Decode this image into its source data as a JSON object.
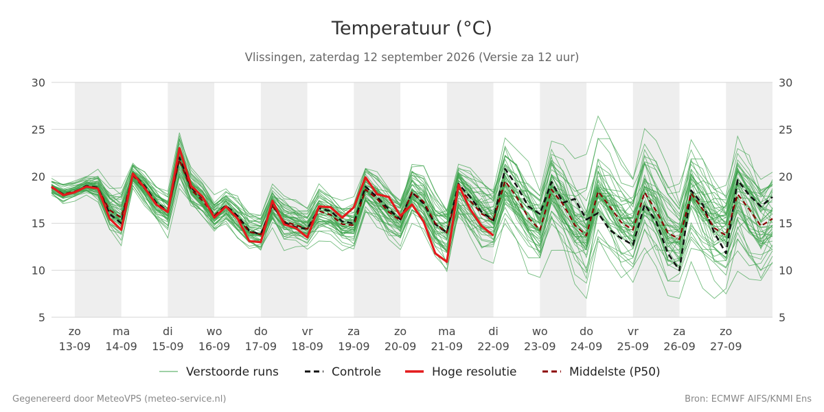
{
  "chart_data": {
    "type": "line",
    "title": "Temperatuur (°C)",
    "subtitle": "Vlissingen, zaterdag 12 september 2026 (Versie za 12 uur)",
    "ylim": [
      5,
      30
    ],
    "y_ticks": [
      5,
      10,
      15,
      20,
      25,
      30
    ],
    "grid": true,
    "x_start": "2026-09-12T12:00",
    "x_end": "2026-09-28T00:00",
    "day_labels": [
      {
        "date": "2026-09-13",
        "weekday": "zo",
        "label": "13-09",
        "shaded": true
      },
      {
        "date": "2026-09-14",
        "weekday": "ma",
        "label": "14-09",
        "shaded": false
      },
      {
        "date": "2026-09-15",
        "weekday": "di",
        "label": "15-09",
        "shaded": true
      },
      {
        "date": "2026-09-16",
        "weekday": "wo",
        "label": "16-09",
        "shaded": false
      },
      {
        "date": "2026-09-17",
        "weekday": "do",
        "label": "17-09",
        "shaded": true
      },
      {
        "date": "2026-09-18",
        "weekday": "vr",
        "label": "18-09",
        "shaded": false
      },
      {
        "date": "2026-09-19",
        "weekday": "za",
        "label": "19-09",
        "shaded": true
      },
      {
        "date": "2026-09-20",
        "weekday": "zo",
        "label": "20-09",
        "shaded": false
      },
      {
        "date": "2026-09-21",
        "weekday": "ma",
        "label": "21-09",
        "shaded": true
      },
      {
        "date": "2026-09-22",
        "weekday": "di",
        "label": "22-09",
        "shaded": false
      },
      {
        "date": "2026-09-23",
        "weekday": "wo",
        "label": "23-09",
        "shaded": true
      },
      {
        "date": "2026-09-24",
        "weekday": "do",
        "label": "24-09",
        "shaded": false
      },
      {
        "date": "2026-09-25",
        "weekday": "vr",
        "label": "25-09",
        "shaded": true
      },
      {
        "date": "2026-09-26",
        "weekday": "za",
        "label": "26-09",
        "shaded": false
      },
      {
        "date": "2026-09-27",
        "weekday": "zo",
        "label": "27-09",
        "shaded": true
      }
    ],
    "legend_position": "bottom",
    "legend": [
      {
        "name": "Verstoorde runs",
        "style": "thin-solid",
        "color": "#3fa34d"
      },
      {
        "name": "Controle",
        "style": "dashed",
        "color": "#111111"
      },
      {
        "name": "Hoge resolutie",
        "style": "thick-solid",
        "color": "#e31a1c"
      },
      {
        "name": "Middelste (P50)",
        "style": "dashed",
        "color": "#8b0000"
      }
    ],
    "ensemble": {
      "name": "Verstoorde runs",
      "member_count": 50,
      "color": "#3fa34d",
      "spread": [
        [
          0.6,
          0.7,
          0.6,
          0.6,
          1.0,
          1.6,
          2.2,
          1.0,
          1.2,
          1.3,
          1.5,
          1.8,
          1.5,
          1.4,
          1.2,
          1.3,
          1.5,
          1.5,
          1.6,
          1.5,
          1.8,
          1.6,
          1.5,
          1.8,
          1.5,
          1.6,
          1.7,
          1.6,
          1.8,
          1.9,
          1.7,
          2.0,
          2.2,
          2.3,
          2.6,
          2.5,
          2.8,
          3.0,
          2.8,
          2.9,
          3.0,
          3.2,
          3.0,
          3.3,
          3.2,
          3.3,
          3.4,
          3.3,
          3.5,
          3.6,
          3.5,
          3.6,
          3.6,
          3.8,
          3.8,
          3.9,
          3.8,
          4.0,
          4.0,
          4.0,
          4.0,
          4.0,
          4.0
        ],
        [
          0,
          6,
          12,
          18,
          24,
          30,
          36,
          42,
          48,
          54,
          60,
          66,
          72,
          78,
          84,
          90,
          96,
          102,
          108,
          114,
          120,
          126,
          132,
          138,
          144,
          150,
          156,
          162,
          168,
          174,
          180,
          186,
          192,
          198,
          204,
          210,
          216,
          222,
          228,
          234,
          240,
          246,
          252,
          258,
          264,
          270,
          276,
          282,
          288,
          294,
          300,
          306,
          312,
          318,
          324,
          330,
          336,
          342,
          348,
          354,
          360,
          366,
          372
        ]
      ]
    },
    "series": [
      {
        "name": "Controle",
        "color": "#111111",
        "x": [
          "2026-09-12T12:00",
          "2026-09-12T18:00",
          "2026-09-13T00:00",
          "2026-09-13T06:00",
          "2026-09-13T12:00",
          "2026-09-13T18:00",
          "2026-09-14T00:00",
          "2026-09-14T06:00",
          "2026-09-14T12:00",
          "2026-09-14T18:00",
          "2026-09-15T00:00",
          "2026-09-15T06:00",
          "2026-09-15T12:00",
          "2026-09-15T18:00",
          "2026-09-16T00:00",
          "2026-09-16T06:00",
          "2026-09-16T12:00",
          "2026-09-16T18:00",
          "2026-09-17T00:00",
          "2026-09-17T06:00",
          "2026-09-17T12:00",
          "2026-09-17T18:00",
          "2026-09-18T00:00",
          "2026-09-18T06:00",
          "2026-09-18T12:00",
          "2026-09-18T18:00",
          "2026-09-19T00:00",
          "2026-09-19T06:00",
          "2026-09-19T12:00",
          "2026-09-19T18:00",
          "2026-09-20T00:00",
          "2026-09-20T06:00",
          "2026-09-20T12:00",
          "2026-09-20T18:00",
          "2026-09-21T00:00",
          "2026-09-21T06:00",
          "2026-09-21T12:00",
          "2026-09-21T18:00",
          "2026-09-22T00:00",
          "2026-09-22T06:00",
          "2026-09-22T12:00",
          "2026-09-22T18:00",
          "2026-09-23T00:00",
          "2026-09-23T06:00",
          "2026-09-23T12:00",
          "2026-09-23T18:00",
          "2026-09-24T00:00",
          "2026-09-24T06:00",
          "2026-09-24T12:00",
          "2026-09-24T18:00",
          "2026-09-25T00:00",
          "2026-09-25T06:00",
          "2026-09-25T12:00",
          "2026-09-25T18:00",
          "2026-09-26T00:00",
          "2026-09-26T06:00",
          "2026-09-26T12:00",
          "2026-09-26T18:00",
          "2026-09-27T00:00",
          "2026-09-27T06:00",
          "2026-09-27T12:00",
          "2026-09-27T18:00",
          "2026-09-28T00:00"
        ],
        "values": [
          18.9,
          18.1,
          18.3,
          19.0,
          18.8,
          16.0,
          15.0,
          20.3,
          19.0,
          17.2,
          16.3,
          22.0,
          18.8,
          17.7,
          15.8,
          16.9,
          15.8,
          14.2,
          13.8,
          17.0,
          15.1,
          14.6,
          14.4,
          16.6,
          16.3,
          15.2,
          15.0,
          18.9,
          17.8,
          16.5,
          15.4,
          18.3,
          17.1,
          14.9,
          14.0,
          19.2,
          17.8,
          16.2,
          15.3,
          20.8,
          19.0,
          16.8,
          16.0,
          19.4,
          17.2,
          17.6,
          15.4,
          16.1,
          14.3,
          13.4,
          12.7,
          17.0,
          15.2,
          11.8,
          10.0,
          18.5,
          17.0,
          14.0,
          11.8,
          19.6,
          18.0,
          16.8,
          17.8
        ]
      },
      {
        "name": "Hoge resolutie",
        "color": "#e31a1c",
        "x": [
          "2026-09-12T12:00",
          "2026-09-12T18:00",
          "2026-09-13T00:00",
          "2026-09-13T06:00",
          "2026-09-13T12:00",
          "2026-09-13T18:00",
          "2026-09-14T00:00",
          "2026-09-14T06:00",
          "2026-09-14T12:00",
          "2026-09-14T18:00",
          "2026-09-15T00:00",
          "2026-09-15T06:00",
          "2026-09-15T12:00",
          "2026-09-15T18:00",
          "2026-09-16T00:00",
          "2026-09-16T06:00",
          "2026-09-16T12:00",
          "2026-09-16T18:00",
          "2026-09-17T00:00",
          "2026-09-17T06:00",
          "2026-09-17T12:00",
          "2026-09-17T18:00",
          "2026-09-18T00:00",
          "2026-09-18T06:00",
          "2026-09-18T12:00",
          "2026-09-18T18:00",
          "2026-09-19T00:00",
          "2026-09-19T06:00",
          "2026-09-19T12:00",
          "2026-09-19T18:00",
          "2026-09-20T00:00",
          "2026-09-20T06:00",
          "2026-09-20T12:00",
          "2026-09-20T18:00",
          "2026-09-21T00:00",
          "2026-09-21T06:00",
          "2026-09-21T12:00",
          "2026-09-21T18:00",
          "2026-09-22T00:00"
        ],
        "values": [
          18.9,
          18.0,
          18.3,
          18.9,
          18.7,
          15.5,
          14.3,
          20.3,
          18.8,
          17.0,
          16.2,
          23.0,
          19.0,
          17.8,
          15.6,
          16.8,
          15.5,
          13.1,
          13.0,
          17.4,
          14.9,
          14.5,
          13.5,
          16.8,
          16.7,
          15.6,
          16.7,
          19.9,
          18.1,
          17.8,
          15.8,
          17.0,
          15.2,
          11.8,
          10.9,
          19.1,
          16.5,
          14.7,
          13.7
        ]
      },
      {
        "name": "Middelste (P50)",
        "color": "#8b0000",
        "x": [
          "2026-09-12T12:00",
          "2026-09-12T18:00",
          "2026-09-13T00:00",
          "2026-09-13T06:00",
          "2026-09-13T12:00",
          "2026-09-13T18:00",
          "2026-09-14T00:00",
          "2026-09-14T06:00",
          "2026-09-14T12:00",
          "2026-09-14T18:00",
          "2026-09-15T00:00",
          "2026-09-15T06:00",
          "2026-09-15T12:00",
          "2026-09-15T18:00",
          "2026-09-16T00:00",
          "2026-09-16T06:00",
          "2026-09-16T12:00",
          "2026-09-16T18:00",
          "2026-09-17T00:00",
          "2026-09-17T06:00",
          "2026-09-17T12:00",
          "2026-09-17T18:00",
          "2026-09-18T00:00",
          "2026-09-18T06:00",
          "2026-09-18T12:00",
          "2026-09-18T18:00",
          "2026-09-19T00:00",
          "2026-09-19T06:00",
          "2026-09-19T12:00",
          "2026-09-19T18:00",
          "2026-09-20T00:00",
          "2026-09-20T06:00",
          "2026-09-20T12:00",
          "2026-09-20T18:00",
          "2026-09-21T00:00",
          "2026-09-21T06:00",
          "2026-09-21T12:00",
          "2026-09-21T18:00",
          "2026-09-22T00:00",
          "2026-09-22T06:00",
          "2026-09-22T12:00",
          "2026-09-22T18:00",
          "2026-09-23T00:00",
          "2026-09-23T06:00",
          "2026-09-23T12:00",
          "2026-09-23T18:00",
          "2026-09-24T00:00",
          "2026-09-24T06:00",
          "2026-09-24T12:00",
          "2026-09-24T18:00",
          "2026-09-25T00:00",
          "2026-09-25T06:00",
          "2026-09-25T12:00",
          "2026-09-25T18:00",
          "2026-09-26T00:00",
          "2026-09-26T06:00",
          "2026-09-26T12:00",
          "2026-09-26T18:00",
          "2026-09-27T00:00",
          "2026-09-27T06:00",
          "2026-09-27T12:00",
          "2026-09-27T18:00",
          "2026-09-28T00:00"
        ],
        "values": [
          18.8,
          18.1,
          18.4,
          18.9,
          18.7,
          16.4,
          15.6,
          20.1,
          18.7,
          17.1,
          16.2,
          21.8,
          18.6,
          17.4,
          15.8,
          16.8,
          15.6,
          14.1,
          13.8,
          16.8,
          15.2,
          14.8,
          14.4,
          16.3,
          15.9,
          14.9,
          14.8,
          18.6,
          17.6,
          16.2,
          15.3,
          18.3,
          17.3,
          15.0,
          14.0,
          18.8,
          17.4,
          16.0,
          15.3,
          19.5,
          17.8,
          15.6,
          14.3,
          18.6,
          17.0,
          14.8,
          13.7,
          18.4,
          16.8,
          15.1,
          14.3,
          18.3,
          16.3,
          14.0,
          13.3,
          18.2,
          16.5,
          14.5,
          13.7,
          18.1,
          16.5,
          14.7,
          15.5
        ]
      }
    ]
  },
  "footer": {
    "left": "Gegenereerd door MeteoVPS (meteo-service.nl)",
    "right": "Bron: ECMWF AIFS/KNMI Ens"
  }
}
